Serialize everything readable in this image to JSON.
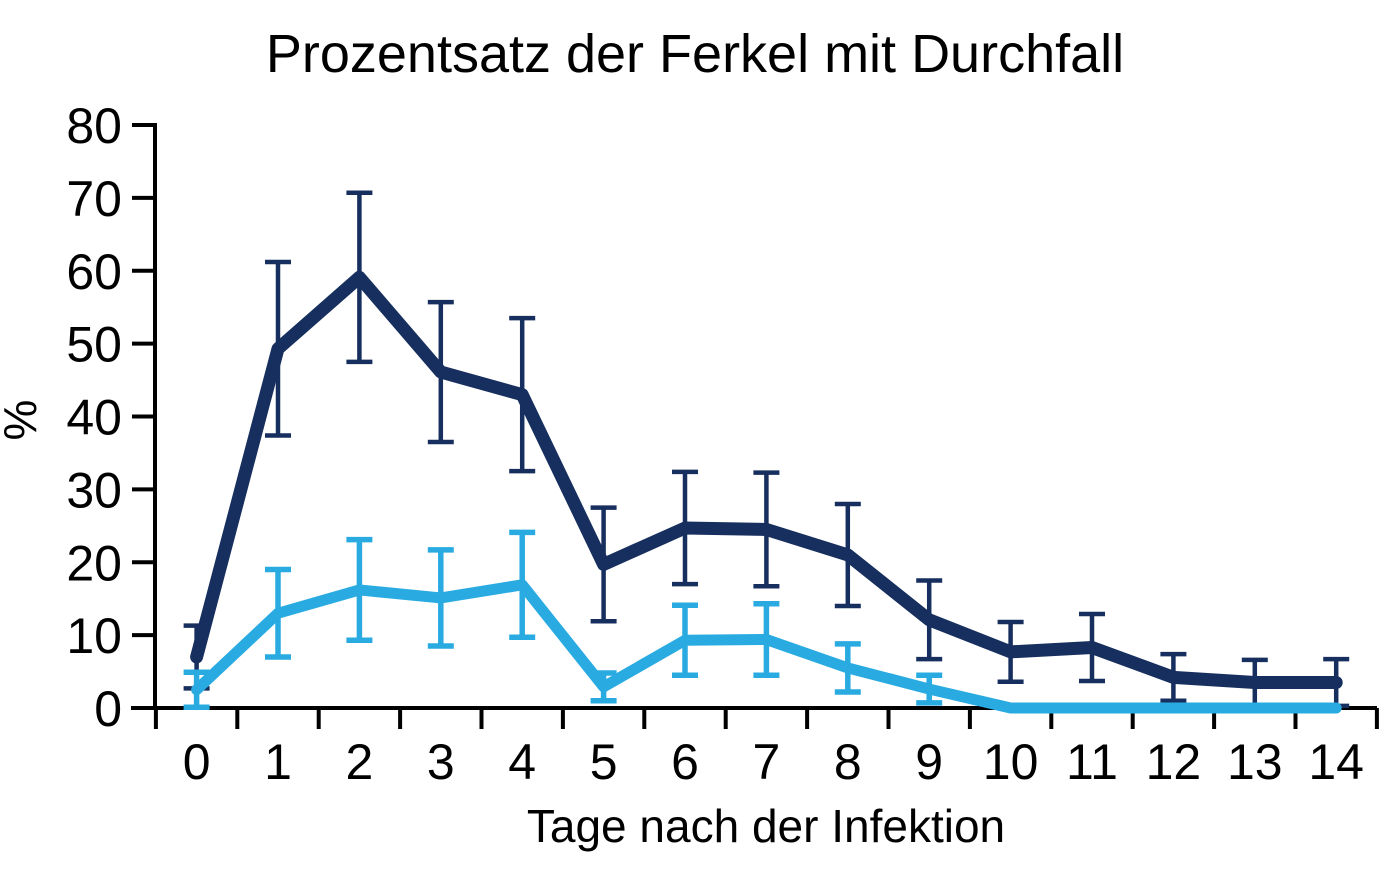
{
  "chart_data": {
    "type": "line",
    "title": "Prozentsatz der Ferkel mit Durchfall",
    "xlabel": "Tage nach der Infektion",
    "ylabel": "%",
    "x": [
      0,
      1,
      2,
      3,
      4,
      5,
      6,
      7,
      8,
      9,
      10,
      11,
      12,
      13,
      14
    ],
    "x_tick_labels": [
      "0",
      "1",
      "2",
      "3",
      "4",
      "5",
      "6",
      "7",
      "8",
      "9",
      "10",
      "11",
      "12",
      "13",
      "14"
    ],
    "y_ticks": [
      0,
      10,
      20,
      30,
      40,
      50,
      60,
      70,
      80
    ],
    "ylim": [
      0,
      80
    ],
    "grid": false,
    "legend": "none",
    "axis_color": "#000000",
    "series": [
      {
        "id": "dark-navy-line",
        "color": "#172f5e",
        "values": [
          7,
          49.3,
          59.1,
          46.1,
          43,
          19.7,
          24.7,
          24.5,
          21,
          12.1,
          7.7,
          8.3,
          4.2,
          3.5,
          3.5
        ],
        "error": [
          4.3,
          11.9,
          11.6,
          9.6,
          10.5,
          7.8,
          7.7,
          7.8,
          7,
          5.4,
          4.1,
          4.6,
          3.2,
          3.1,
          3.2
        ]
      },
      {
        "id": "light-blue-line",
        "color": "#29abe2",
        "values": [
          2.5,
          13,
          16.2,
          15.1,
          16.9,
          2.9,
          9.3,
          9.4,
          5.5,
          2.6,
          0,
          0,
          0,
          0,
          0
        ],
        "error": [
          2.4,
          6,
          6.9,
          6.6,
          7.2,
          1.9,
          4.8,
          4.9,
          3.3,
          1.9,
          0,
          0,
          0,
          0,
          0
        ]
      }
    ]
  }
}
